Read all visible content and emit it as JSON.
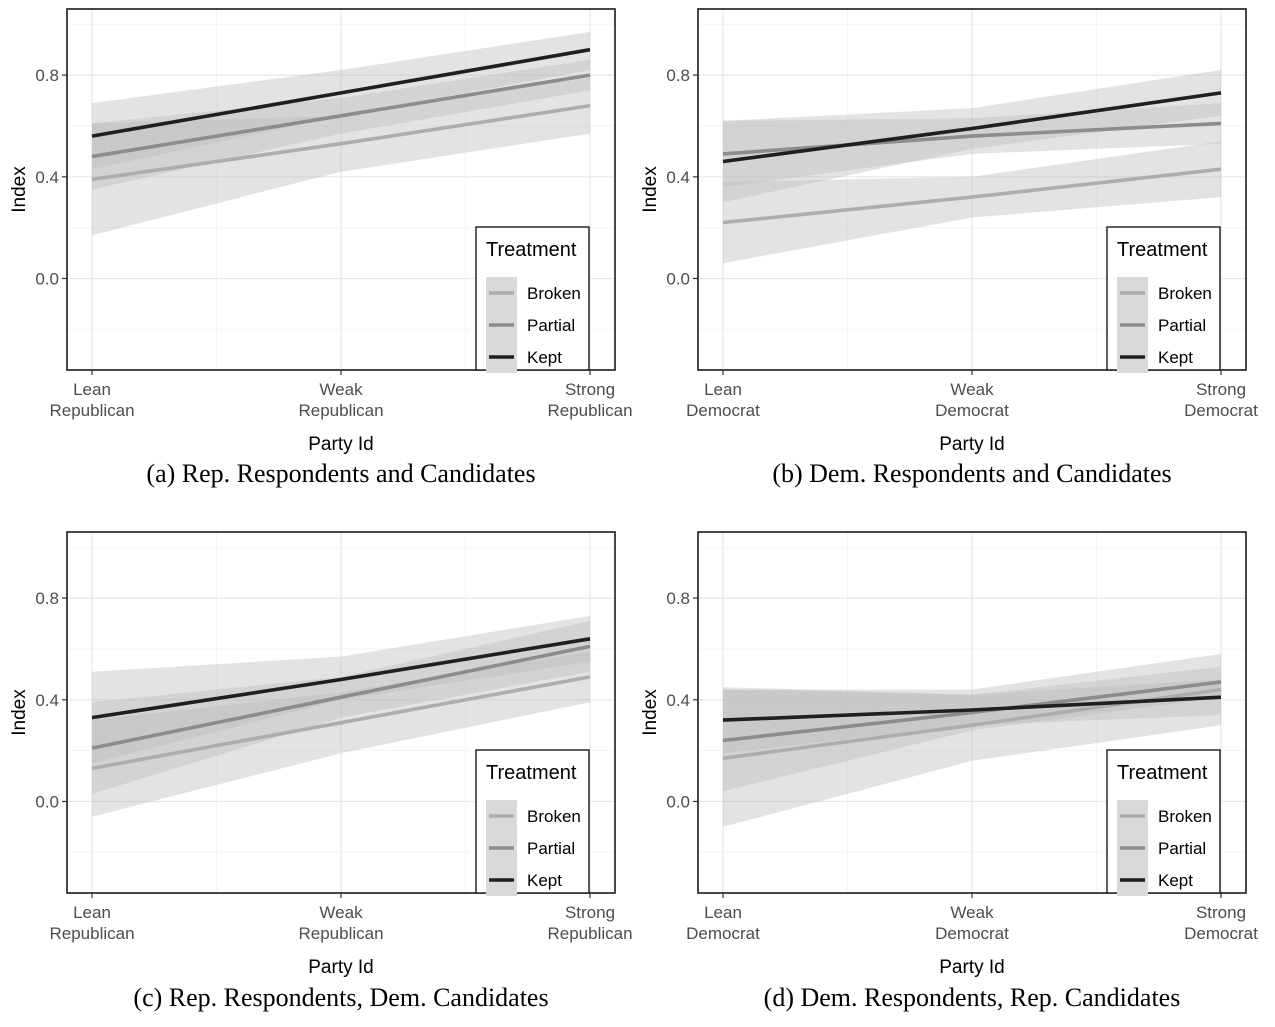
{
  "chart_data": [
    {
      "type": "line",
      "caption": "(a) Rep. Respondents and Candidates",
      "xlabel": "Party Id",
      "ylabel": "Index",
      "categories": [
        [
          "Lean",
          "Republican"
        ],
        [
          "Weak",
          "Republican"
        ],
        [
          "Strong",
          "Republican"
        ]
      ],
      "yticks": [
        "0.0",
        "0.4",
        "0.8"
      ],
      "ylim": [
        -0.36,
        1.06
      ],
      "legend": {
        "title": "Treatment",
        "position": "bottom-right"
      },
      "series": [
        {
          "name": "Broken",
          "color": "#adadad",
          "y": [
            0.39,
            0.53,
            0.68
          ],
          "lower": [
            0.17,
            0.42,
            0.57
          ],
          "upper": [
            0.61,
            0.64,
            0.79
          ]
        },
        {
          "name": "Partial",
          "color": "#8c8c8c",
          "y": [
            0.48,
            0.64,
            0.8
          ],
          "lower": [
            0.35,
            0.57,
            0.74
          ],
          "upper": [
            0.61,
            0.71,
            0.86
          ]
        },
        {
          "name": "Kept",
          "color": "#1f1f1f",
          "y": [
            0.56,
            0.73,
            0.9
          ],
          "lower": [
            0.43,
            0.64,
            0.82
          ],
          "upper": [
            0.69,
            0.82,
            0.97
          ]
        }
      ]
    },
    {
      "type": "line",
      "caption": "(b) Dem. Respondents and Candidates",
      "xlabel": "Party Id",
      "ylabel": "Index",
      "categories": [
        [
          "Lean",
          "Democrat"
        ],
        [
          "Weak",
          "Democrat"
        ],
        [
          "Strong",
          "Democrat"
        ]
      ],
      "yticks": [
        "0.0",
        "0.4",
        "0.8"
      ],
      "ylim": [
        -0.36,
        1.06
      ],
      "legend": {
        "title": "Treatment",
        "position": "bottom-right"
      },
      "series": [
        {
          "name": "Broken",
          "color": "#adadad",
          "y": [
            0.22,
            0.32,
            0.43
          ],
          "lower": [
            0.06,
            0.24,
            0.32
          ],
          "upper": [
            0.38,
            0.4,
            0.54
          ]
        },
        {
          "name": "Partial",
          "color": "#8c8c8c",
          "y": [
            0.49,
            0.56,
            0.61
          ],
          "lower": [
            0.36,
            0.49,
            0.53
          ],
          "upper": [
            0.62,
            0.63,
            0.69
          ]
        },
        {
          "name": "Kept",
          "color": "#1f1f1f",
          "y": [
            0.46,
            0.59,
            0.73
          ],
          "lower": [
            0.3,
            0.51,
            0.64
          ],
          "upper": [
            0.62,
            0.67,
            0.82
          ]
        }
      ]
    },
    {
      "type": "line",
      "caption": "(c) Rep. Respondents, Dem. Candidates",
      "xlabel": "Party Id",
      "ylabel": "Index",
      "categories": [
        [
          "Lean",
          "Republican"
        ],
        [
          "Weak",
          "Republican"
        ],
        [
          "Strong",
          "Republican"
        ]
      ],
      "yticks": [
        "0.0",
        "0.4",
        "0.8"
      ],
      "ylim": [
        -0.36,
        1.06
      ],
      "legend": {
        "title": "Treatment",
        "position": "bottom-right"
      },
      "series": [
        {
          "name": "Broken",
          "color": "#adadad",
          "y": [
            0.13,
            0.31,
            0.49
          ],
          "lower": [
            -0.06,
            0.19,
            0.39
          ],
          "upper": [
            0.32,
            0.43,
            0.59
          ]
        },
        {
          "name": "Partial",
          "color": "#8c8c8c",
          "y": [
            0.21,
            0.41,
            0.61
          ],
          "lower": [
            0.03,
            0.33,
            0.51
          ],
          "upper": [
            0.39,
            0.49,
            0.71
          ]
        },
        {
          "name": "Kept",
          "color": "#1f1f1f",
          "y": [
            0.33,
            0.48,
            0.64
          ],
          "lower": [
            0.15,
            0.4,
            0.55
          ],
          "upper": [
            0.51,
            0.57,
            0.73
          ]
        }
      ]
    },
    {
      "type": "line",
      "caption": "(d) Dem. Respondents, Rep. Candidates",
      "xlabel": "Party Id",
      "ylabel": "Index",
      "categories": [
        [
          "Lean",
          "Democrat"
        ],
        [
          "Weak",
          "Democrat"
        ],
        [
          "Strong",
          "Democrat"
        ]
      ],
      "yticks": [
        "0.0",
        "0.4",
        "0.8"
      ],
      "ylim": [
        -0.36,
        1.06
      ],
      "legend": {
        "title": "Treatment",
        "position": "bottom-right"
      },
      "series": [
        {
          "name": "Broken",
          "color": "#adadad",
          "y": [
            0.17,
            0.3,
            0.44
          ],
          "lower": [
            -0.1,
            0.16,
            0.3
          ],
          "upper": [
            0.44,
            0.44,
            0.58
          ]
        },
        {
          "name": "Partial",
          "color": "#8c8c8c",
          "y": [
            0.24,
            0.35,
            0.47
          ],
          "lower": [
            0.04,
            0.28,
            0.41
          ],
          "upper": [
            0.44,
            0.42,
            0.53
          ]
        },
        {
          "name": "Kept",
          "color": "#1f1f1f",
          "y": [
            0.32,
            0.36,
            0.41
          ],
          "lower": [
            0.19,
            0.3,
            0.34
          ],
          "upper": [
            0.45,
            0.42,
            0.48
          ]
        }
      ]
    }
  ]
}
